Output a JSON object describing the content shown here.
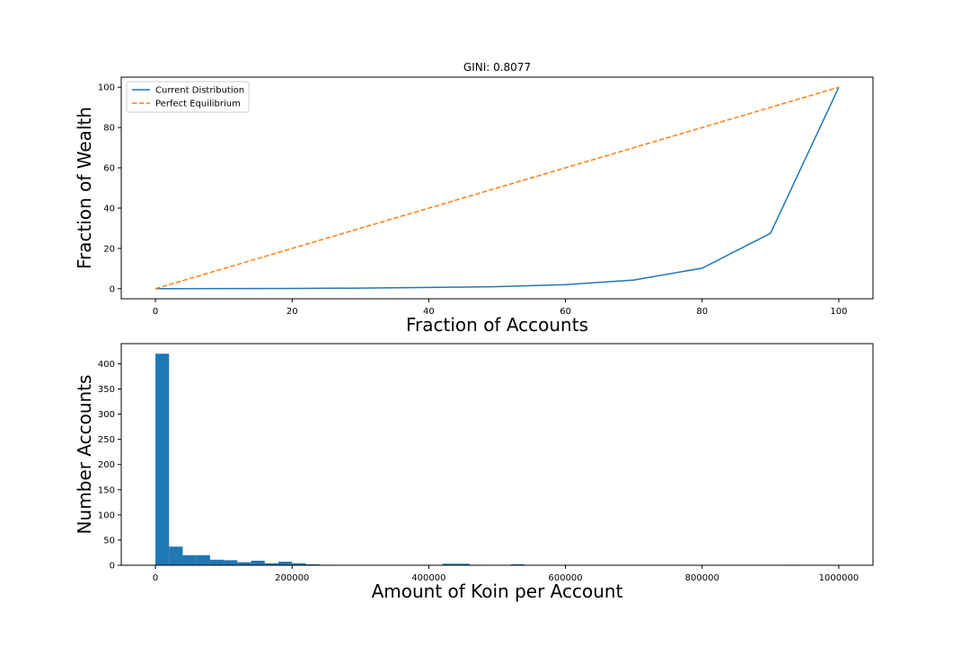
{
  "chart_data": [
    {
      "type": "line",
      "title": "GINI: 0.8077",
      "xlabel": "Fraction of Accounts",
      "ylabel": "Fraction of Wealth",
      "xlim": [
        -5,
        105
      ],
      "ylim": [
        -5,
        105
      ],
      "xticks": [
        0,
        20,
        40,
        60,
        80,
        100
      ],
      "yticks": [
        0,
        20,
        40,
        60,
        80,
        100
      ],
      "grid": false,
      "legend_position": "top-left",
      "series": [
        {
          "name": "Current Distribution",
          "color": "#1f77b4",
          "style": "solid",
          "x": [
            0,
            10,
            20,
            30,
            40,
            50,
            60,
            70,
            80,
            90,
            100
          ],
          "y": [
            0,
            0.05,
            0.15,
            0.3,
            0.6,
            1.0,
            2.0,
            4.3,
            10.2,
            27.5,
            100
          ]
        },
        {
          "name": "Perfect Equilibrium",
          "color": "#ff7f0e",
          "style": "dashed",
          "x": [
            0,
            100
          ],
          "y": [
            0,
            100
          ]
        }
      ]
    },
    {
      "type": "bar",
      "xlabel": "Amount of Koin per Account",
      "ylabel": "Number Accounts",
      "xlim": [
        -50000,
        1050000
      ],
      "ylim": [
        0,
        440
      ],
      "xticks": [
        0,
        200000,
        400000,
        600000,
        800000,
        1000000
      ],
      "yticks": [
        0,
        50,
        100,
        150,
        200,
        250,
        300,
        350,
        400
      ],
      "grid": false,
      "color": "#1f77b4",
      "bin_start": 0,
      "bin_width": 20000,
      "values": [
        420,
        37,
        20,
        20,
        11,
        10,
        6,
        9,
        4,
        7,
        4,
        2,
        1,
        0,
        0,
        0,
        0,
        0,
        0,
        0,
        0,
        3,
        3,
        1,
        0,
        0,
        2,
        0,
        0,
        0,
        0,
        0,
        0,
        0,
        0,
        0,
        0,
        0,
        0,
        0,
        0,
        0,
        0,
        0,
        0,
        0,
        1,
        0,
        0,
        0,
        0,
        0,
        0,
        0,
        0,
        0,
        0,
        0,
        0,
        0,
        0,
        0,
        0,
        0,
        0,
        0,
        0,
        1,
        0,
        0,
        0,
        0,
        0,
        0,
        0,
        0,
        0,
        0,
        0,
        0,
        0,
        0,
        0,
        0,
        0,
        0,
        0,
        0,
        0,
        0,
        0,
        1,
        0,
        0,
        0,
        0,
        0,
        1,
        0,
        0
      ]
    }
  ]
}
